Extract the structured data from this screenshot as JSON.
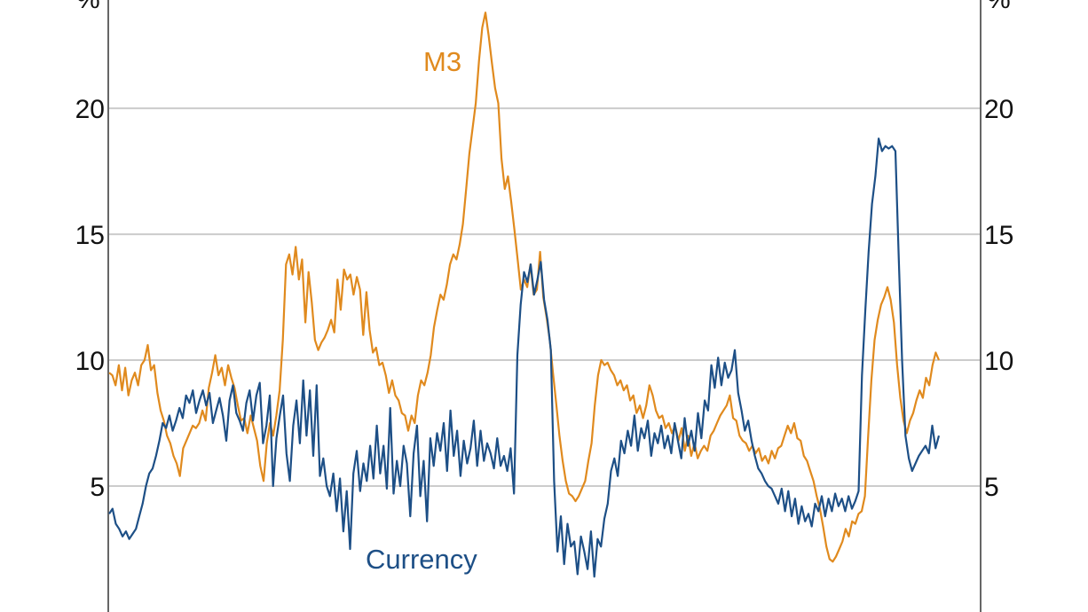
{
  "chart_data": {
    "type": "line",
    "unit_left": "%",
    "unit_right": "%",
    "ylim": [
      0,
      24.3
    ],
    "yticks": [
      {
        "value": 5,
        "label": "5"
      },
      {
        "value": 10,
        "label": "10"
      },
      {
        "value": 15,
        "label": "15"
      },
      {
        "value": 20,
        "label": "20"
      }
    ],
    "grid": true,
    "colors": {
      "M3": "#e08a1e",
      "Currency": "#1d4f86",
      "grid": "#cccccc",
      "axis": "#666666"
    },
    "series": [
      {
        "name": "M3",
        "values": [
          9.5,
          9.4,
          9.0,
          9.8,
          8.8,
          9.7,
          8.6,
          9.2,
          9.5,
          9.0,
          9.8,
          10.0,
          10.6,
          9.6,
          9.8,
          8.7,
          8.0,
          7.6,
          7.0,
          6.7,
          6.2,
          5.9,
          5.4,
          6.5,
          6.8,
          7.1,
          7.4,
          7.3,
          7.5,
          8.0,
          7.6,
          8.9,
          9.5,
          10.2,
          9.4,
          9.7,
          9.0,
          9.8,
          9.3,
          8.9,
          8.2,
          7.6,
          7.7,
          7.1,
          7.8,
          7.3,
          6.8,
          5.8,
          5.2,
          6.7,
          7.5,
          7.0,
          7.8,
          8.8,
          10.8,
          13.8,
          14.2,
          13.4,
          14.5,
          13.2,
          14.0,
          11.5,
          13.5,
          12.3,
          10.8,
          10.4,
          10.7,
          10.9,
          11.2,
          11.6,
          11.1,
          13.2,
          12.0,
          13.6,
          13.2,
          13.4,
          12.6,
          13.3,
          12.8,
          11.0,
          12.7,
          11.2,
          10.3,
          10.5,
          9.8,
          9.9,
          9.4,
          8.7,
          9.2,
          8.6,
          8.4,
          7.9,
          7.8,
          7.2,
          7.8,
          7.5,
          8.6,
          9.2,
          9.0,
          9.5,
          10.2,
          11.3,
          12.0,
          12.6,
          12.4,
          13.0,
          13.8,
          14.2,
          14.0,
          14.6,
          15.4,
          16.8,
          18.2,
          19.2,
          20.2,
          21.9,
          23.2,
          23.8,
          22.9,
          21.8,
          20.8,
          20.2,
          18.0,
          16.8,
          17.3,
          16.3,
          15.2,
          14.0,
          12.8,
          13.2,
          12.9,
          13.8,
          12.6,
          12.8,
          14.3,
          12.5,
          11.7,
          10.8,
          9.5,
          8.3,
          7.0,
          6.0,
          5.2,
          4.7,
          4.6,
          4.4,
          4.6,
          4.9,
          5.2,
          6.0,
          6.7,
          8.2,
          9.4,
          10.0,
          9.8,
          9.9,
          9.6,
          9.4,
          9.0,
          9.2,
          8.8,
          9.0,
          8.4,
          8.6,
          7.9,
          8.2,
          7.7,
          8.2,
          9.0,
          8.6,
          8.0,
          7.7,
          7.8,
          7.3,
          7.5,
          7.1,
          7.4,
          6.8,
          7.3,
          6.4,
          7.0,
          6.2,
          6.7,
          6.1,
          6.4,
          6.6,
          6.4,
          7.0,
          7.2,
          7.5,
          7.8,
          8.0,
          8.2,
          8.6,
          7.7,
          7.6,
          7.0,
          6.8,
          6.7,
          6.4,
          6.6,
          6.3,
          6.5,
          6.0,
          6.2,
          5.9,
          6.4,
          6.1,
          6.5,
          6.6,
          7.0,
          7.4,
          7.1,
          7.5,
          6.9,
          6.8,
          6.2,
          6.0,
          5.6,
          5.2,
          4.6,
          4.1,
          3.4,
          2.6,
          2.1,
          2.0,
          2.2,
          2.5,
          2.8,
          3.3,
          3.0,
          3.6,
          3.5,
          3.9,
          4.0,
          4.6,
          7.0,
          9.2,
          10.8,
          11.6,
          12.2,
          12.5,
          12.9,
          12.4,
          11.5,
          9.8,
          8.5,
          7.6,
          7.1,
          7.6,
          7.9,
          8.4,
          8.8,
          8.5,
          9.3,
          9.0,
          9.8,
          10.3,
          10.0
        ]
      },
      {
        "name": "Currency",
        "values": [
          3.9,
          4.1,
          3.5,
          3.3,
          3.0,
          3.2,
          2.9,
          3.1,
          3.3,
          3.8,
          4.3,
          5.0,
          5.5,
          5.7,
          6.2,
          6.8,
          7.5,
          7.3,
          7.8,
          7.2,
          7.6,
          8.1,
          7.7,
          8.6,
          8.3,
          8.8,
          7.9,
          8.4,
          8.8,
          8.2,
          8.7,
          7.5,
          8.0,
          8.5,
          7.8,
          6.8,
          8.4,
          9.0,
          7.9,
          7.6,
          7.2,
          8.3,
          8.8,
          7.6,
          8.6,
          9.1,
          6.7,
          7.4,
          8.6,
          5.0,
          6.9,
          7.8,
          8.6,
          6.3,
          5.2,
          7.4,
          8.4,
          6.7,
          9.2,
          7.0,
          8.8,
          6.2,
          9.0,
          5.4,
          6.1,
          5.0,
          4.6,
          5.5,
          4.0,
          5.3,
          3.2,
          4.8,
          2.5,
          5.5,
          6.4,
          4.8,
          5.9,
          5.2,
          6.6,
          5.3,
          7.4,
          5.5,
          6.6,
          4.9,
          8.1,
          4.7,
          6.0,
          5.0,
          6.6,
          5.9,
          3.8,
          6.3,
          7.4,
          4.6,
          6.0,
          3.6,
          6.9,
          5.8,
          7.1,
          6.4,
          7.5,
          5.6,
          8.0,
          6.2,
          7.2,
          5.4,
          6.8,
          5.9,
          6.5,
          7.6,
          5.8,
          7.2,
          6.0,
          6.7,
          6.3,
          5.7,
          6.9,
          5.8,
          6.2,
          5.6,
          6.5,
          4.7,
          10.2,
          12.2,
          13.5,
          13.1,
          13.8,
          12.6,
          13.2,
          13.9,
          12.4,
          11.6,
          10.4,
          5.2,
          2.4,
          3.8,
          1.9,
          3.5,
          2.6,
          2.8,
          1.5,
          3.0,
          2.4,
          1.7,
          3.2,
          1.4,
          2.9,
          2.6,
          3.7,
          4.3,
          5.6,
          6.1,
          5.4,
          6.8,
          6.3,
          7.2,
          6.6,
          7.8,
          6.4,
          7.3,
          6.9,
          7.6,
          6.2,
          7.1,
          6.7,
          7.4,
          6.5,
          7.0,
          6.3,
          7.5,
          6.8,
          6.1,
          7.7,
          6.6,
          7.2,
          6.4,
          7.9,
          6.9,
          8.4,
          8.0,
          9.8,
          8.9,
          10.1,
          9.0,
          9.9,
          9.3,
          9.6,
          10.4,
          8.7,
          8.0,
          7.2,
          7.6,
          6.8,
          6.2,
          5.7,
          5.5,
          5.2,
          5.0,
          4.9,
          4.6,
          4.3,
          4.9,
          4.0,
          4.8,
          3.8,
          4.5,
          3.5,
          4.2,
          3.6,
          3.9,
          3.4,
          4.3,
          4.0,
          4.6,
          3.8,
          4.5,
          4.0,
          4.7,
          4.2,
          4.5,
          4.0,
          4.6,
          4.1,
          4.4,
          4.8,
          9.4,
          12.0,
          14.3,
          16.2,
          17.3,
          18.8,
          18.3,
          18.5,
          18.4,
          18.5,
          18.3,
          14.0,
          10.0,
          7.0,
          6.1,
          5.6,
          5.9,
          6.2,
          6.4,
          6.6,
          6.3,
          7.4,
          6.5,
          7.0
        ]
      }
    ],
    "annotations": [
      {
        "text": "M3",
        "series": "M3"
      },
      {
        "text": "Currency",
        "series": "Currency"
      }
    ]
  }
}
